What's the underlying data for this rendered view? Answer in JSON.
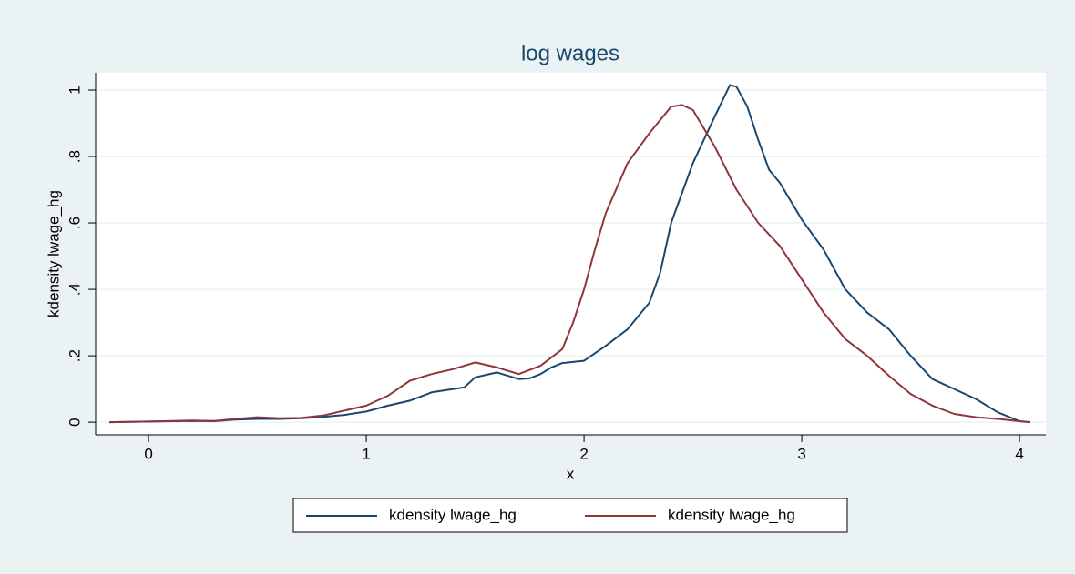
{
  "chart_data": {
    "type": "line",
    "title": "log wages",
    "xlabel": "x",
    "ylabel": "kdensity lwage_hg",
    "xlim": [
      -0.243,
      4.121
    ],
    "ylim": [
      -0.038,
      1.052
    ],
    "xticks": [
      0,
      1,
      2,
      3,
      4
    ],
    "yticks": [
      0,
      {
        "value": 0.2,
        "label": ".2"
      },
      {
        "value": 0.4,
        "label": ".4"
      },
      {
        "value": 0.6,
        "label": ".6"
      },
      {
        "value": 0.8,
        "label": ".8"
      },
      1
    ],
    "grid": true,
    "legend": "bottom",
    "series": [
      {
        "name": "kdensity lwage_hg",
        "color": "#1a476f",
        "x": [
          -0.18,
          0,
          0.2,
          0.3,
          0.4,
          0.5,
          0.6,
          0.7,
          0.8,
          0.9,
          1.0,
          1.1,
          1.2,
          1.3,
          1.4,
          1.45,
          1.5,
          1.6,
          1.7,
          1.75,
          1.8,
          1.85,
          1.9,
          2.0,
          2.1,
          2.2,
          2.3,
          2.35,
          2.4,
          2.5,
          2.6,
          2.67,
          2.7,
          2.75,
          2.8,
          2.85,
          2.9,
          3.0,
          3.1,
          3.2,
          3.3,
          3.4,
          3.5,
          3.6,
          3.7,
          3.8,
          3.9,
          4.0,
          4.05
        ],
        "values": [
          0,
          0.002,
          0.004,
          0.003,
          0.008,
          0.01,
          0.01,
          0.012,
          0.016,
          0.022,
          0.032,
          0.05,
          0.065,
          0.09,
          0.1,
          0.105,
          0.135,
          0.15,
          0.13,
          0.132,
          0.145,
          0.165,
          0.178,
          0.185,
          0.23,
          0.28,
          0.36,
          0.45,
          0.6,
          0.78,
          0.92,
          1.015,
          1.01,
          0.95,
          0.85,
          0.76,
          0.72,
          0.61,
          0.52,
          0.4,
          0.33,
          0.28,
          0.2,
          0.13,
          0.1,
          0.07,
          0.03,
          0.003,
          0
        ]
      },
      {
        "name": "kdensity lwage_hg",
        "color": "#90353b",
        "x": [
          -0.18,
          0,
          0.2,
          0.3,
          0.4,
          0.5,
          0.6,
          0.7,
          0.8,
          0.9,
          1.0,
          1.1,
          1.2,
          1.3,
          1.4,
          1.5,
          1.6,
          1.7,
          1.8,
          1.9,
          1.95,
          2.0,
          2.05,
          2.1,
          2.2,
          2.3,
          2.4,
          2.45,
          2.5,
          2.6,
          2.7,
          2.8,
          2.9,
          3.0,
          3.1,
          3.2,
          3.3,
          3.4,
          3.5,
          3.6,
          3.7,
          3.8,
          3.9,
          4.0,
          4.05
        ],
        "values": [
          0,
          0.002,
          0.005,
          0.004,
          0.01,
          0.015,
          0.012,
          0.013,
          0.02,
          0.035,
          0.05,
          0.08,
          0.125,
          0.145,
          0.16,
          0.18,
          0.165,
          0.145,
          0.17,
          0.22,
          0.3,
          0.4,
          0.52,
          0.63,
          0.78,
          0.87,
          0.95,
          0.955,
          0.94,
          0.83,
          0.7,
          0.6,
          0.53,
          0.43,
          0.33,
          0.25,
          0.2,
          0.14,
          0.085,
          0.05,
          0.025,
          0.015,
          0.01,
          0.003,
          0
        ]
      }
    ]
  }
}
